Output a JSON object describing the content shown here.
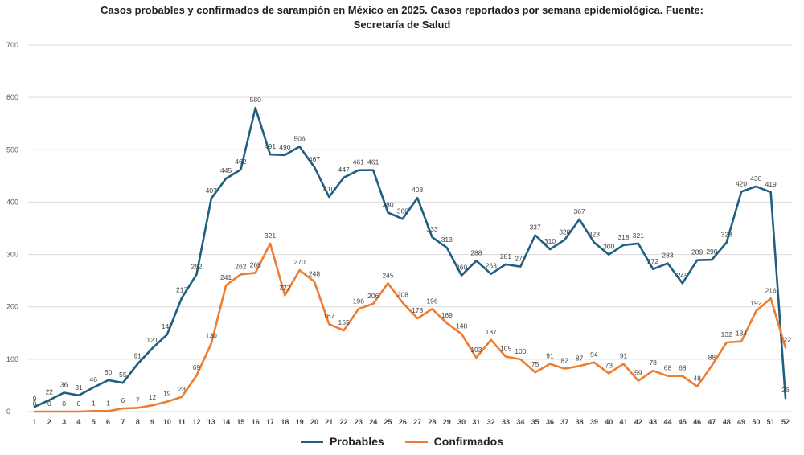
{
  "chart_data": {
    "type": "line",
    "title_line1": "Casos probables y confirmados de sarampión  en México en 2025. Casos reportados por  semana epidemiológica. Fuente:",
    "title_line2": "Secretaría de Salud",
    "xlabel": "",
    "ylabel": "",
    "ylim": [
      0,
      700
    ],
    "yticks": [
      "0",
      "100",
      "200",
      "300",
      "400",
      "500",
      "600",
      "700"
    ],
    "categories": [
      "1",
      "2",
      "3",
      "4",
      "5",
      "6",
      "7",
      "8",
      "9",
      "10",
      "11",
      "12",
      "13",
      "14",
      "15",
      "16",
      "17",
      "18",
      "19",
      "20",
      "21",
      "22",
      "23",
      "24",
      "25",
      "26",
      "27",
      "28",
      "29",
      "30",
      "31",
      "32",
      "33",
      "34",
      "35",
      "36",
      "37",
      "38",
      "39",
      "40",
      "41",
      "42",
      "43",
      "44",
      "45",
      "46",
      "47",
      "48",
      "49",
      "50",
      "51",
      "52"
    ],
    "grid": true,
    "legend_position": "bottom",
    "series": [
      {
        "name": "Probables",
        "color": "#1f5f7f",
        "values": [
          9,
          22,
          36,
          31,
          46,
          60,
          55,
          91,
          121,
          147,
          217,
          262,
          407,
          445,
          462,
          580,
          491,
          490,
          506,
          467,
          410,
          447,
          461,
          461,
          380,
          368,
          408,
          333,
          313,
          260,
          288,
          263,
          281,
          277,
          337,
          310,
          328,
          367,
          323,
          300,
          318,
          321,
          272,
          283,
          245,
          289,
          290,
          323,
          420,
          430,
          419,
          26
        ]
      },
      {
        "name": "Confirmados",
        "color": "#ed7d31",
        "values": [
          0,
          0,
          0,
          0,
          1,
          1,
          6,
          7,
          12,
          19,
          28,
          69,
          130,
          241,
          262,
          265,
          321,
          222,
          270,
          248,
          167,
          155,
          196,
          206,
          245,
          208,
          178,
          196,
          169,
          148,
          103,
          137,
          105,
          100,
          75,
          91,
          82,
          87,
          94,
          73,
          91,
          59,
          78,
          68,
          68,
          48,
          88,
          132,
          134,
          192,
          216,
          122
        ]
      }
    ]
  }
}
